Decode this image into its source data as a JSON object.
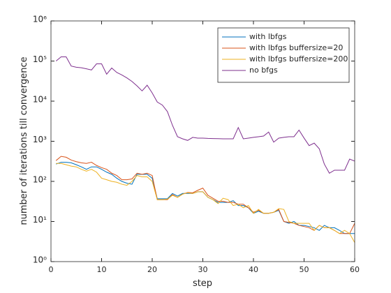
{
  "chart_data": {
    "type": "line",
    "xlabel": "step",
    "ylabel": "number of iterations till convergence",
    "x": [
      1,
      2,
      3,
      4,
      5,
      6,
      7,
      8,
      9,
      10,
      11,
      12,
      13,
      14,
      15,
      16,
      17,
      18,
      19,
      20,
      21,
      22,
      23,
      24,
      25,
      26,
      27,
      28,
      29,
      30,
      31,
      32,
      33,
      34,
      35,
      36,
      37,
      38,
      39,
      40,
      41,
      42,
      43,
      44,
      45,
      46,
      47,
      48,
      49,
      50,
      51,
      52,
      53,
      54,
      55,
      56,
      57,
      58,
      59,
      60
    ],
    "xlim": [
      0,
      60
    ],
    "xticks": [
      0,
      10,
      20,
      30,
      40,
      50,
      60
    ],
    "ylim": [
      1,
      1000000
    ],
    "ylog": true,
    "yticks": [
      {
        "value": 1,
        "label": "10⁰"
      },
      {
        "value": 10,
        "label": "10¹"
      },
      {
        "value": 100,
        "label": "10²"
      },
      {
        "value": 1000,
        "label": "10³"
      },
      {
        "value": 10000,
        "label": "10⁴"
      },
      {
        "value": 100000,
        "label": "10⁵"
      },
      {
        "value": 1000000,
        "label": "10⁶"
      }
    ],
    "grid": false,
    "legend": "northeast",
    "series": [
      {
        "name": "with lbfgs",
        "color": "#0072BD",
        "values": [
          270,
          300,
          300,
          290,
          260,
          230,
          200,
          230,
          230,
          200,
          170,
          150,
          120,
          100,
          90,
          85,
          150,
          150,
          150,
          120,
          37,
          37,
          37,
          50,
          43,
          50,
          50,
          50,
          55,
          55,
          40,
          35,
          30,
          30,
          30,
          33,
          25,
          25,
          22,
          16,
          18,
          16,
          16,
          17,
          19,
          10,
          9,
          10,
          8,
          8,
          7.5,
          7,
          6,
          8,
          7,
          7,
          6,
          5,
          5,
          5
        ]
      },
      {
        "name": "with lbfgs buffersize=20",
        "color": "#D95319",
        "values": [
          330,
          420,
          400,
          340,
          310,
          290,
          280,
          300,
          250,
          220,
          200,
          160,
          140,
          110,
          110,
          115,
          160,
          150,
          160,
          140,
          35,
          35,
          35,
          47,
          40,
          48,
          53,
          52,
          60,
          68,
          45,
          38,
          32,
          32,
          30,
          30,
          27,
          27,
          22,
          17,
          19,
          16,
          16,
          17,
          20,
          10,
          9.5,
          9,
          8,
          7.5,
          7,
          6,
          8,
          7,
          7,
          6,
          5,
          5,
          5,
          9
        ]
      },
      {
        "name": "with lbfgs buffersize=200",
        "color": "#EDB120",
        "values": [
          280,
          280,
          260,
          240,
          230,
          200,
          180,
          200,
          170,
          120,
          110,
          100,
          95,
          85,
          80,
          100,
          140,
          130,
          130,
          100,
          35,
          35,
          36,
          45,
          40,
          48,
          52,
          50,
          55,
          55,
          40,
          35,
          28,
          38,
          35,
          25,
          27,
          22,
          25,
          16,
          20,
          16,
          16,
          17,
          21,
          20,
          10,
          9,
          9,
          9,
          9,
          6,
          8,
          7,
          7,
          6,
          5,
          6,
          5,
          3
        ]
      },
      {
        "name": "no bfgs",
        "color": "#7E2F8E",
        "values": [
          100000,
          127000,
          127000,
          75000,
          70000,
          68000,
          64000,
          60000,
          85000,
          85000,
          47000,
          67000,
          52000,
          45000,
          38000,
          31000,
          24000,
          18000,
          25000,
          16000,
          9500,
          8000,
          5500,
          2500,
          1300,
          1150,
          1050,
          1250,
          1200,
          1200,
          1180,
          1170,
          1160,
          1150,
          1150,
          1150,
          2200,
          1150,
          1200,
          1250,
          1300,
          1350,
          1700,
          950,
          1200,
          1250,
          1300,
          1300,
          1900,
          1200,
          780,
          900,
          650,
          270,
          160,
          190,
          190,
          190,
          360,
          320
        ]
      }
    ]
  }
}
